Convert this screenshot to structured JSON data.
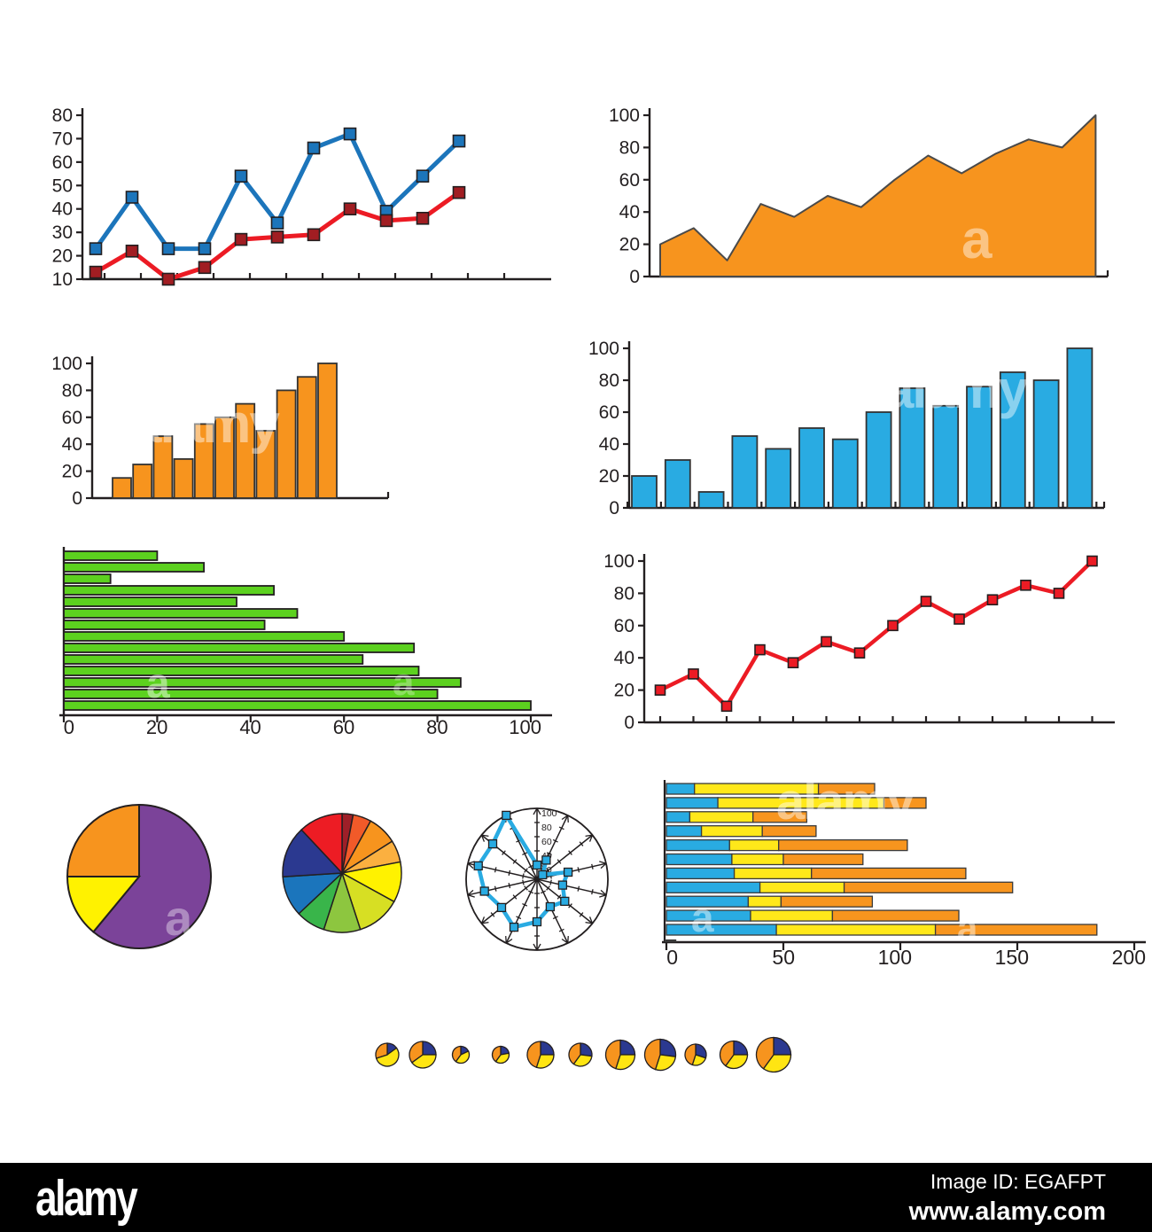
{
  "page": {
    "background": "#ffffff",
    "description": "infographic set of charts and graphs"
  },
  "colors": {
    "axis": "#231F20",
    "orange": "#F7941E",
    "blue_bar": "#29ABE2",
    "green_bar": "#5CD11F",
    "line_blue": "#1C75BB",
    "line_red": "#EC1B24",
    "marker_dark_red": "#A11D22",
    "purple": "#7B4399",
    "yellow": "#FFF200",
    "navy": "#2B3990",
    "stacked_yellow": "#FFE81A"
  },
  "watermarks": {
    "items": [
      "a",
      "alamy",
      "alamy",
      "a",
      "a",
      "a",
      "alamy",
      "a",
      "a"
    ]
  },
  "footer": {
    "logo": "alamy",
    "image_id": "Image ID: EGAFPT",
    "url": "www.alamy.com"
  },
  "chart_data": [
    {
      "id": "line-dual",
      "type": "line",
      "ylim": [
        10,
        80
      ],
      "yticks": [
        10,
        20,
        30,
        40,
        50,
        60,
        70,
        80
      ],
      "grid": false,
      "legend": "none",
      "series": [
        {
          "name": "blue-series",
          "color": "#1C75BB",
          "marker_fill": "#1C75BB",
          "values": [
            23,
            45,
            23,
            23,
            54,
            34,
            66,
            72,
            39,
            54,
            69
          ]
        },
        {
          "name": "red-series",
          "color": "#EC1B24",
          "marker_fill": "#A11D22",
          "values": [
            13,
            22,
            10,
            15,
            27,
            28,
            29,
            40,
            35,
            36,
            47
          ]
        }
      ]
    },
    {
      "id": "area-orange",
      "type": "area",
      "ylim": [
        0,
        100
      ],
      "yticks": [
        0,
        20,
        40,
        60,
        80,
        100
      ],
      "grid": false,
      "color": "#F7941E",
      "values": [
        20,
        30,
        10,
        45,
        37,
        50,
        43,
        60,
        75,
        64,
        76,
        85,
        80,
        100
      ]
    },
    {
      "id": "bar-orange",
      "type": "bar",
      "ylim": [
        0,
        100
      ],
      "yticks": [
        0,
        20,
        40,
        60,
        80,
        100
      ],
      "grid": false,
      "color": "#F7941E",
      "values": [
        15,
        25,
        46,
        29,
        55,
        60,
        70,
        50,
        80,
        90,
        100
      ]
    },
    {
      "id": "bar-blue",
      "type": "bar",
      "ylim": [
        0,
        100
      ],
      "yticks": [
        0,
        20,
        40,
        60,
        80,
        100
      ],
      "grid": false,
      "color": "#29ABE2",
      "values": [
        20,
        30,
        10,
        45,
        37,
        50,
        43,
        60,
        75,
        64,
        76,
        85,
        80,
        100
      ]
    },
    {
      "id": "hbar-green",
      "type": "hbar",
      "xlim": [
        0,
        100
      ],
      "xticks": [
        0,
        20,
        40,
        60,
        80,
        100
      ],
      "grid": false,
      "color": "#5CD11F",
      "values": [
        20,
        30,
        10,
        45,
        37,
        50,
        43,
        60,
        75,
        64,
        76,
        85,
        80,
        100
      ]
    },
    {
      "id": "line-red",
      "type": "line",
      "ylim": [
        0,
        100
      ],
      "yticks": [
        0,
        20,
        40,
        60,
        80,
        100
      ],
      "grid": false,
      "series": [
        {
          "name": "red-series",
          "color": "#EC1B24",
          "marker_fill": "#EC1B24",
          "values": [
            20,
            30,
            10,
            45,
            37,
            50,
            43,
            60,
            75,
            64,
            76,
            85,
            80,
            100
          ]
        }
      ]
    },
    {
      "id": "pie-purple",
      "type": "pie",
      "slices": [
        {
          "label": "purple",
          "value": 61,
          "color": "#7B4399"
        },
        {
          "label": "yellow",
          "value": 14,
          "color": "#FFF200"
        },
        {
          "label": "orange",
          "value": 25,
          "color": "#F7941E"
        }
      ]
    },
    {
      "id": "pie-rainbow",
      "type": "pie",
      "slices": [
        {
          "label": "dark-red",
          "value": 3,
          "color": "#9E1F28"
        },
        {
          "label": "orange-red",
          "value": 5,
          "color": "#F15A29"
        },
        {
          "label": "orange",
          "value": 8,
          "color": "#F7941E"
        },
        {
          "label": "light-orange",
          "value": 6,
          "color": "#FBB040"
        },
        {
          "label": "yellow",
          "value": 11,
          "color": "#FFF200"
        },
        {
          "label": "yellow-green",
          "value": 12,
          "color": "#D7DF23"
        },
        {
          "label": "light-green",
          "value": 10,
          "color": "#8DC63F"
        },
        {
          "label": "green",
          "value": 8,
          "color": "#39B54A"
        },
        {
          "label": "blue",
          "value": 11,
          "color": "#1B75BC"
        },
        {
          "label": "navy",
          "value": 14,
          "color": "#2B3990"
        },
        {
          "label": "red",
          "value": 12,
          "color": "#ED1C24"
        }
      ]
    },
    {
      "id": "radar",
      "type": "radar",
      "rmax": 100,
      "spokes": 14,
      "rtick_labels": [
        100,
        80,
        60,
        40,
        20
      ],
      "color": "#29ABE2",
      "values": [
        20,
        30,
        10,
        45,
        37,
        50,
        43,
        60,
        75,
        64,
        76,
        85,
        80,
        100
      ]
    },
    {
      "id": "hbar-stacked",
      "type": "stacked-hbar",
      "xlim": [
        0,
        200
      ],
      "xticks": [
        0,
        50,
        100,
        150,
        200
      ],
      "grid": false,
      "series_names": [
        "blue",
        "yellow",
        "orange"
      ],
      "colors": [
        "#29ABE2",
        "#FFE81A",
        "#F7951E"
      ],
      "rows": [
        [
          12,
          53,
          24
        ],
        [
          22,
          71,
          18
        ],
        [
          10,
          27,
          23
        ],
        [
          15,
          26,
          23
        ],
        [
          27,
          21,
          55
        ],
        [
          28,
          22,
          34
        ],
        [
          29,
          33,
          66
        ],
        [
          40,
          36,
          72
        ],
        [
          35,
          14,
          39
        ],
        [
          36,
          35,
          54
        ],
        [
          47,
          68,
          69
        ]
      ],
      "stub": 5
    },
    {
      "id": "mini-pies",
      "type": "pie-row",
      "colors": {
        "navy": "#2B3990",
        "yellow": "#FFE512",
        "orange": "#F7941E"
      },
      "pies": [
        {
          "size": 26,
          "navy": 15,
          "yellow": 55,
          "orange": 30
        },
        {
          "size": 30,
          "navy": 25,
          "yellow": 40,
          "orange": 35
        },
        {
          "size": 19,
          "navy": 18,
          "yellow": 42,
          "orange": 40
        },
        {
          "size": 19,
          "navy": 22,
          "yellow": 38,
          "orange": 40
        },
        {
          "size": 30,
          "navy": 25,
          "yellow": 30,
          "orange": 45
        },
        {
          "size": 26,
          "navy": 27,
          "yellow": 33,
          "orange": 40
        },
        {
          "size": 33,
          "navy": 25,
          "yellow": 30,
          "orange": 45
        },
        {
          "size": 35,
          "navy": 27,
          "yellow": 28,
          "orange": 45
        },
        {
          "size": 24,
          "navy": 30,
          "yellow": 25,
          "orange": 45
        },
        {
          "size": 31,
          "navy": 25,
          "yellow": 35,
          "orange": 40
        },
        {
          "size": 39,
          "navy": 25,
          "yellow": 35,
          "orange": 40
        }
      ]
    }
  ]
}
